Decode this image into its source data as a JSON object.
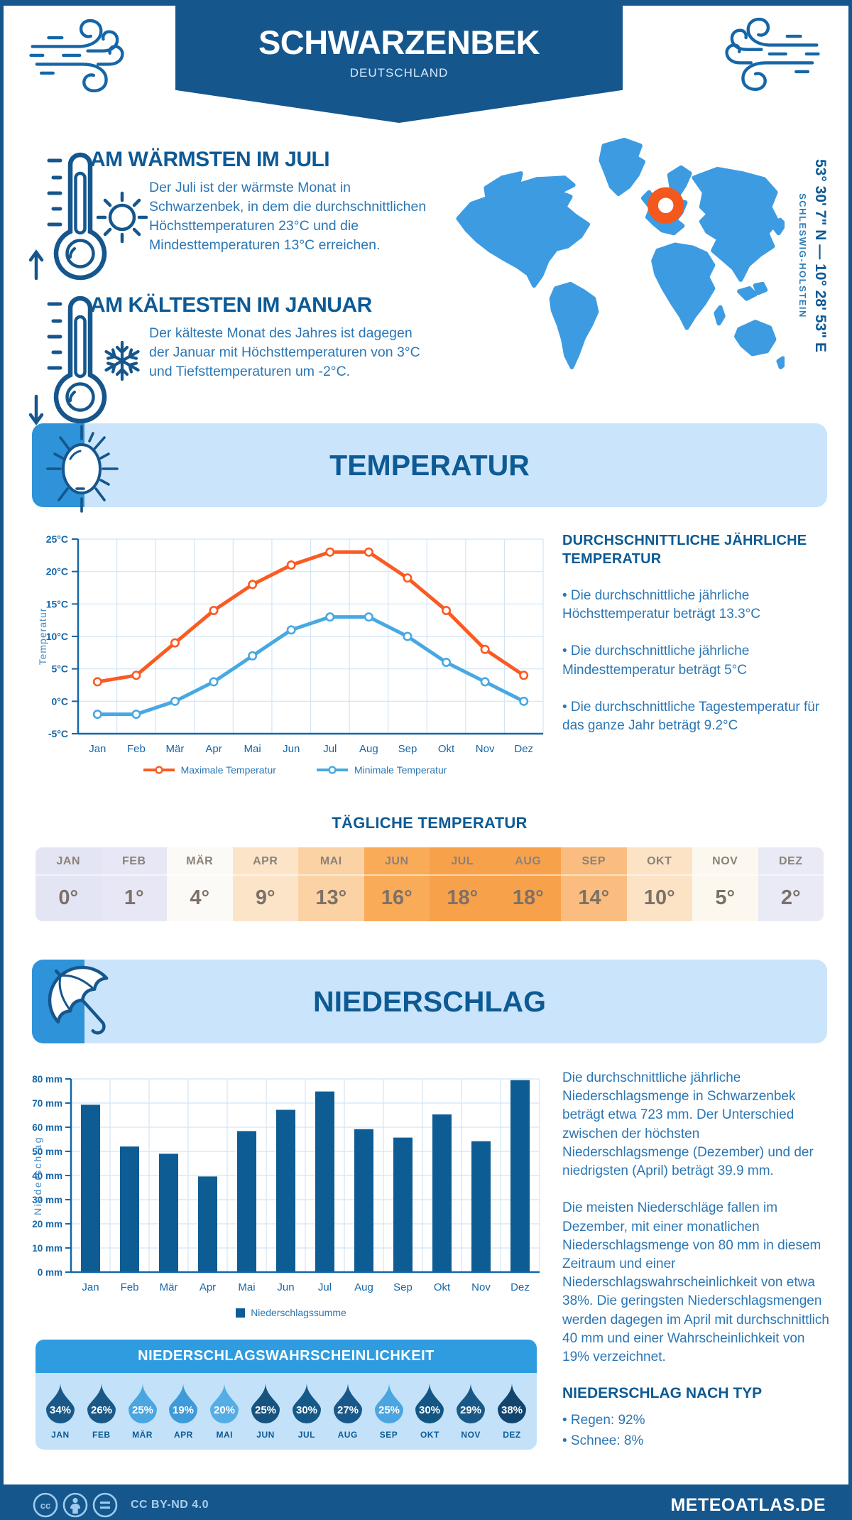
{
  "header": {
    "title": "SCHWARZENBEK",
    "subtitle": "DEUTSCHLAND"
  },
  "location": {
    "coordinates": "53° 30' 7\" N — 10° 28' 53\" E",
    "region": "SCHLESWIG-HOLSTEIN"
  },
  "intro": {
    "warm_heading": "AM WÄRMSTEN IM JULI",
    "warm_text": "Der Juli ist der wärmste Monat in Schwarzenbek, in dem die durchschnittlichen Höchsttemperaturen 23°C und die Mindesttemperaturen 13°C erreichen.",
    "cold_heading": "AM KÄLTESTEN IM JANUAR",
    "cold_text": "Der kälteste Monat des Jahres ist dagegen der Januar mit Höchsttemperaturen von 3°C und Tiefsttemperaturen um -2°C."
  },
  "temperature": {
    "banner": "TEMPERATUR",
    "avg_heading": "DURCHSCHNITTLICHE JÄHRLICHE TEMPERATUR",
    "bullets": [
      "• Die durchschnittliche jährliche Höchsttemperatur beträgt 13.3°C",
      "• Die durchschnittliche jährliche Mindesttemperatur beträgt 5°C",
      "• Die durchschnittliche Tagestemperatur für das ganze Jahr beträgt 9.2°C"
    ],
    "daily_heading": "TÄGLICHE TEMPERATUR",
    "daily_months": [
      "JAN",
      "FEB",
      "MÄR",
      "APR",
      "MAI",
      "JUN",
      "JUL",
      "AUG",
      "SEP",
      "OKT",
      "NOV",
      "DEZ"
    ],
    "daily_values": [
      "0°",
      "1°",
      "4°",
      "9°",
      "13°",
      "16°",
      "18°",
      "18°",
      "14°",
      "10°",
      "5°",
      "2°"
    ],
    "daily_colors": [
      "#e4e5f4",
      "#e7e7f5",
      "#fbfaf6",
      "#fce4c9",
      "#fbd2a4",
      "#f9ab58",
      "#f8a14b",
      "#f8a14b",
      "#fabd7f",
      "#fce3c6",
      "#fdf8ef",
      "#e9eaf6"
    ]
  },
  "precipitation": {
    "banner": "NIEDERSCHLAG",
    "paragraphs": [
      "Die durchschnittliche jährliche Niederschlagsmenge in Schwarzenbek beträgt etwa 723 mm. Der Unterschied zwischen der höchsten Niederschlagsmenge (Dezember) und der niedrigsten (April) beträgt 39.9 mm.",
      "Die meisten Niederschläge fallen im Dezember, mit einer monatlichen Niederschlagsmenge von 80 mm in diesem Zeitraum und einer Niederschlagswahrscheinlichkeit von etwa 38%. Die geringsten Niederschlagsmengen werden dagegen im April mit durchschnittlich 40 mm und einer Wahrscheinlichkeit von 19% verzeichnet."
    ],
    "type_heading": "NIEDERSCHLAG NACH TYP",
    "type_bullets": [
      "• Regen: 92%",
      "• Schnee: 8%"
    ]
  },
  "probability": {
    "heading": "NIEDERSCHLAGSWAHRSCHEINLICHKEIT",
    "months": [
      "JAN",
      "FEB",
      "MÄR",
      "APR",
      "MAI",
      "JUN",
      "JUL",
      "AUG",
      "SEP",
      "OKT",
      "NOV",
      "DEZ"
    ],
    "values": [
      "34%",
      "26%",
      "25%",
      "19%",
      "20%",
      "25%",
      "30%",
      "27%",
      "25%",
      "30%",
      "29%",
      "38%"
    ],
    "colors": [
      "#1a5987",
      "#1a5987",
      "#4aa5e0",
      "#3e9ad8",
      "#55ade5",
      "#17537f",
      "#145988",
      "#19588a",
      "#4aa5e0",
      "#135683",
      "#1a5987",
      "#12456e"
    ]
  },
  "chart_data": [
    {
      "type": "line",
      "categories": [
        "Jan",
        "Feb",
        "Mär",
        "Apr",
        "Mai",
        "Jun",
        "Jul",
        "Aug",
        "Sep",
        "Okt",
        "Nov",
        "Dez"
      ],
      "series": [
        {
          "name": "Maximale Temperatur",
          "color": "#f95b22",
          "values": [
            3,
            4,
            9,
            14,
            18,
            21,
            23,
            23,
            19,
            14,
            8,
            4
          ]
        },
        {
          "name": "Minimale Temperatur",
          "color": "#47a8e2",
          "values": [
            -2,
            -2,
            0,
            3,
            7,
            11,
            13,
            13,
            10,
            6,
            3,
            0
          ]
        }
      ],
      "ylabel": "Temperatur",
      "ytick_suffix": "°C",
      "ylim": [
        -5,
        25
      ],
      "ystep": 5,
      "grid": true,
      "legend_position": "bottom"
    },
    {
      "type": "bar",
      "categories": [
        "Jan",
        "Feb",
        "Mär",
        "Apr",
        "Mai",
        "Jun",
        "Jul",
        "Aug",
        "Sep",
        "Okt",
        "Nov",
        "Dez"
      ],
      "series": [
        {
          "name": "Niederschlagssumme",
          "color": "#0d5c94",
          "values": [
            69.3,
            52,
            49,
            39.6,
            58.4,
            67.2,
            74.8,
            59.2,
            55.7,
            65.3,
            54.2,
            79.5
          ]
        }
      ],
      "ylabel": "Niederschlag",
      "ytick_suffix": " mm",
      "ylim": [
        0,
        80
      ],
      "ystep": 10,
      "grid": true,
      "legend_position": "bottom"
    }
  ],
  "footer": {
    "license": "CC BY-ND 4.0",
    "site": "METEOATLAS.DE"
  }
}
